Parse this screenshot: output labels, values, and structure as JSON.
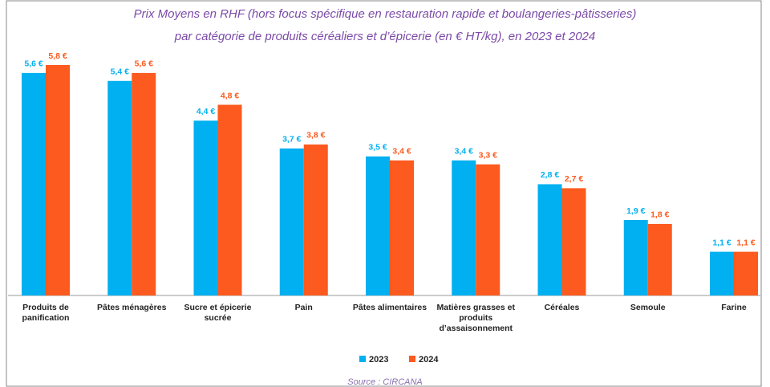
{
  "chart_data": {
    "type": "bar",
    "title": "Prix Moyens en RHF (hors focus spécifique en restauration rapide et boulangeries-pâtisseries)",
    "subtitle": "par catégorie de produits céréaliers et d’épicerie (en € HT/kg), en 2023 et 2024",
    "categories": [
      "Produits de panification",
      "Pâtes ménagères",
      "Sucre et épicerie sucrée",
      "Pain",
      "Pâtes alimentaires",
      "Matières grasses et produits d’assaisonnement",
      "Céréales",
      "Semoule",
      "Farine"
    ],
    "series": [
      {
        "name": "2023",
        "color": "#00b0f0",
        "values": [
          5.6,
          5.4,
          4.4,
          3.7,
          3.5,
          3.4,
          2.8,
          1.9,
          1.1
        ],
        "value_labels": [
          "5,6 €",
          "5,4 €",
          "4,4 €",
          "3,7 €",
          "3,5 €",
          "3,4 €",
          "2,8 €",
          "1,9 €",
          "1,1 €"
        ]
      },
      {
        "name": "2024",
        "color": "#fc5a1e",
        "values": [
          5.8,
          5.6,
          4.8,
          3.8,
          3.4,
          3.3,
          2.7,
          1.8,
          1.1
        ],
        "value_labels": [
          "5,8 €",
          "5,6 €",
          "4,8 €",
          "3,8 €",
          "3,4 €",
          "3,3 €",
          "2,7 €",
          "1,8 €",
          "1,1 €"
        ]
      }
    ],
    "legend": "bottom",
    "source": "Source : CIRCANA"
  }
}
